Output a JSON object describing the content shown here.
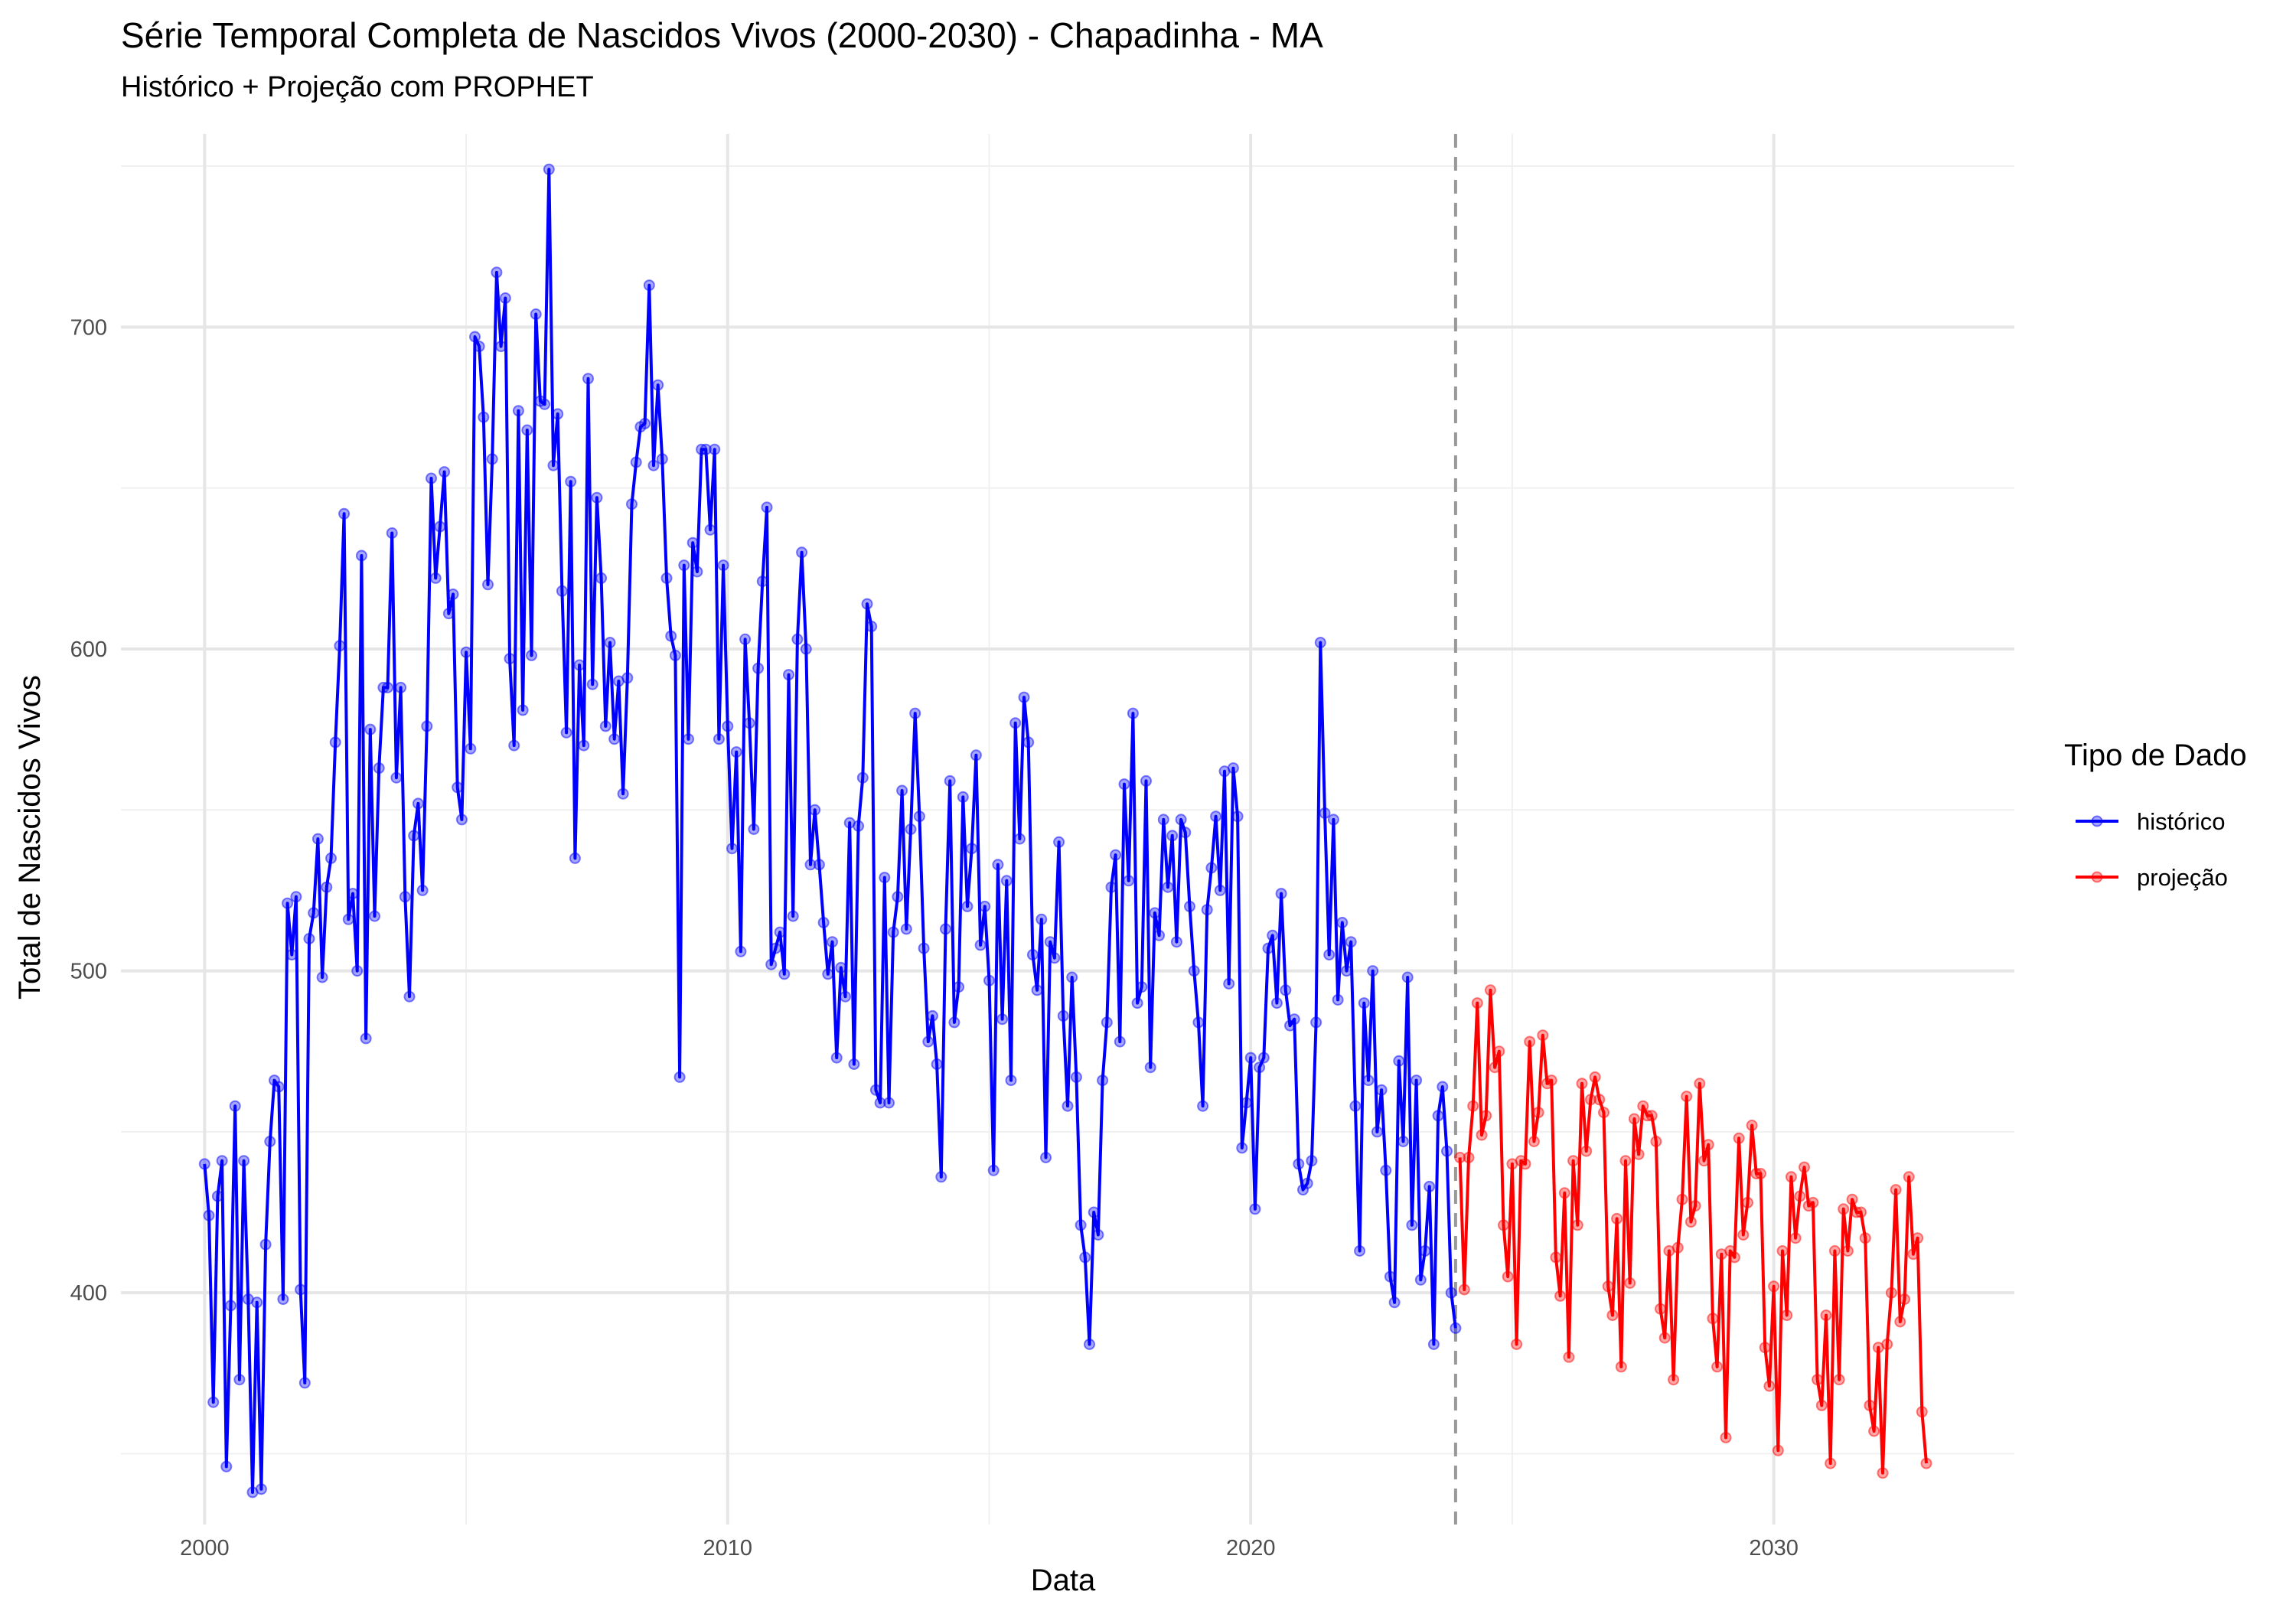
{
  "chart_data": {
    "type": "line",
    "title": "Série Temporal Completa de Nascidos Vivos (2000-2030) -  Chapadinha - MA",
    "subtitle": "Histórico + Projeção com PROPHET",
    "xlabel": "Data",
    "ylabel": "Total de Nascidos Vivos",
    "xlim": [
      1998.4,
      2034.6
    ],
    "ylim": [
      328,
      760
    ],
    "x_ticks": [
      2000,
      2010,
      2020,
      2030
    ],
    "x_tick_labels": [
      "2000",
      "2010",
      "2020",
      "2030"
    ],
    "y_ticks": [
      400,
      500,
      600,
      700
    ],
    "y_tick_labels": [
      "400",
      "500",
      "600",
      "700"
    ],
    "grid": true,
    "cutoff_x": 2023.917,
    "legend": {
      "title": "Tipo de Dado",
      "position": "right",
      "items": [
        {
          "label": "histórico",
          "color": "#0000ff"
        },
        {
          "label": "projeção",
          "color": "#ff0000"
        }
      ]
    },
    "series": [
      {
        "name": "histórico",
        "color": "#0000ff",
        "start_year": 2000,
        "values": [
          440,
          424,
          366,
          430,
          441,
          346,
          396,
          458,
          373,
          441,
          398,
          338,
          397,
          339,
          415,
          447,
          466,
          464,
          398,
          521,
          505,
          523,
          401,
          372,
          510,
          518,
          541,
          498,
          526,
          535,
          571,
          601,
          642,
          516,
          524,
          500,
          629,
          479,
          575,
          517,
          563,
          588,
          588,
          636,
          560,
          588,
          523,
          492,
          542,
          552,
          525,
          576,
          653,
          622,
          638,
          655,
          611,
          617,
          557,
          547,
          599,
          569,
          697,
          694,
          672,
          620,
          659,
          717,
          694,
          709,
          597,
          570,
          674,
          581,
          668,
          598,
          704,
          677,
          676,
          749,
          657,
          673,
          618,
          574,
          652,
          535,
          595,
          570,
          684,
          589,
          647,
          622,
          576,
          602,
          572,
          590,
          555,
          591,
          645,
          658,
          669,
          670,
          713,
          657,
          682,
          659,
          622,
          604,
          598,
          467,
          626,
          572,
          633,
          624,
          662,
          662,
          637,
          662,
          572,
          626,
          576,
          538,
          568,
          506,
          603,
          577,
          544,
          594,
          621,
          644,
          502,
          507,
          512,
          499,
          592,
          517,
          603,
          630,
          600,
          533,
          550,
          533,
          515,
          499,
          509,
          473,
          501,
          492,
          546,
          471,
          545,
          560,
          614,
          607,
          463,
          459,
          529,
          459,
          512,
          523,
          556,
          513,
          544,
          580,
          548,
          507,
          478,
          486,
          471,
          436,
          513,
          559,
          484,
          495,
          554,
          520,
          538,
          567,
          508,
          520,
          497,
          438,
          533,
          485,
          528,
          466,
          577,
          541,
          585,
          571,
          505,
          494,
          516,
          442,
          509,
          504,
          540,
          486,
          458,
          498,
          467,
          421,
          411,
          384,
          425,
          418,
          466,
          484,
          526,
          536,
          478,
          558,
          528,
          580,
          490,
          495,
          559,
          470,
          518,
          511,
          547,
          526,
          542,
          509,
          547,
          543,
          520,
          500,
          484,
          458,
          519,
          532,
          548,
          525,
          562,
          496,
          563,
          548,
          445,
          459,
          473,
          426,
          470,
          473,
          507,
          511,
          490,
          524,
          494,
          483,
          485,
          440,
          432,
          434,
          441,
          484,
          602,
          549,
          505,
          547,
          491,
          515,
          500,
          509,
          458,
          413,
          490,
          466,
          500,
          450,
          463,
          438,
          405,
          397,
          472,
          447,
          498,
          421,
          466,
          404,
          413,
          433,
          384,
          455,
          464,
          444,
          400,
          389
        ]
      },
      {
        "name": "projeção",
        "color": "#ff0000",
        "start_year": 2024,
        "values": [
          442,
          401,
          442,
          458,
          490,
          449,
          455,
          494,
          470,
          475,
          421,
          405,
          440,
          384,
          441,
          440,
          478,
          447,
          456,
          480,
          465,
          466,
          411,
          399,
          431,
          380,
          441,
          421,
          465,
          444,
          460,
          467,
          460,
          456,
          402,
          393,
          423,
          377,
          441,
          403,
          454,
          443,
          458,
          455,
          455,
          447,
          395,
          386,
          413,
          373,
          414,
          429,
          461,
          422,
          427,
          465,
          441,
          446,
          392,
          377,
          412,
          355,
          413,
          411,
          448,
          418,
          428,
          452,
          437,
          437,
          383,
          371,
          402,
          351,
          413,
          393,
          436,
          417,
          430,
          439,
          427,
          428,
          373,
          365,
          393,
          347,
          413,
          373,
          426,
          413,
          429,
          425,
          425,
          417,
          365,
          357,
          383,
          344,
          384,
          400,
          432,
          391,
          398,
          436,
          412,
          417,
          363,
          347
        ]
      }
    ]
  }
}
